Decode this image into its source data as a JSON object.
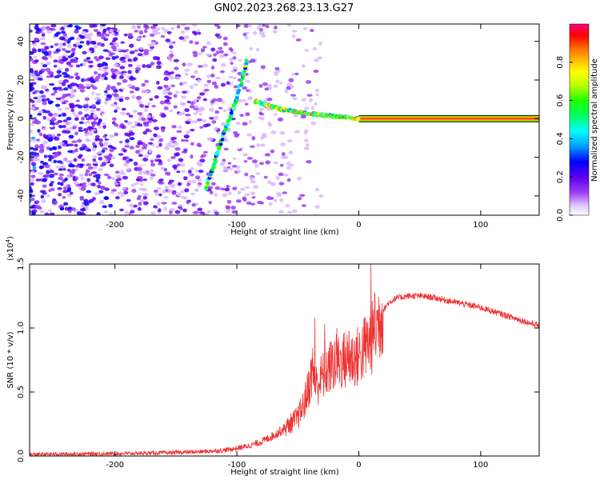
{
  "title": "GN02.2023.268.23.13.G27",
  "chart_data": [
    {
      "type": "heatmap",
      "title": "",
      "xlabel": "Height of straight line (km)",
      "ylabel": "Frequency (Hz)",
      "xlim": [
        -270,
        148
      ],
      "ylim": [
        -50,
        49
      ],
      "xticks": [
        -200,
        -100,
        0,
        100
      ],
      "yticks": [
        -40,
        -20,
        0,
        20,
        40
      ],
      "colorbar": {
        "label": "Normalized spectral amplitude",
        "range": [
          0,
          1
        ],
        "ticks": [
          "0.0",
          "0.2",
          "0.4",
          "0.6",
          "0.8"
        ],
        "colormap": [
          "#ffffff",
          "#d9b8ff",
          "#9a3cf2",
          "#5a00f0",
          "#0000ff",
          "#00a0ff",
          "#00ffff",
          "#00ff60",
          "#20ff00",
          "#c0ff00",
          "#ffff00",
          "#ffb000",
          "#ff6000",
          "#ff0000",
          "#ff0080"
        ]
      },
      "features": [
        {
          "name": "steady-carrier",
          "x_from": 0,
          "x_to": 148,
          "freq": 0,
          "amplitude": 0.95
        },
        {
          "name": "converging-trace",
          "points": [
            [
              -85,
              9
            ],
            [
              -65,
              5
            ],
            [
              -45,
              3
            ],
            [
              -25,
              1.5
            ],
            [
              0,
              0
            ]
          ],
          "amplitude": 0.6
        },
        {
          "name": "rising-diagonal",
          "points": [
            [
              -125,
              -36
            ],
            [
              -113,
              -12
            ],
            [
              -100,
              10
            ],
            [
              -92,
              30
            ]
          ],
          "amplitude": 0.45
        }
      ]
    },
    {
      "type": "line",
      "title": "",
      "xlabel": "Height of straight line (km)",
      "ylabel": "SNR (10 * v/v)",
      "scale_label": "(x10",
      "scale_exp": "4",
      "scale_close": ")",
      "xlim": [
        -270,
        148
      ],
      "ylim": [
        0,
        15000
      ],
      "xticks": [
        -200,
        -100,
        0,
        100
      ],
      "yticks": [
        0,
        5000,
        10000,
        15000
      ],
      "ytick_labels": [
        "0.0",
        "0.5",
        "1.0",
        "1.5"
      ],
      "color": "#ee3333",
      "series": [
        {
          "x": [
            -270,
            -250,
            -230,
            -210,
            -190,
            -170,
            -150,
            -130,
            -110,
            -100,
            -90,
            -80,
            -70,
            -60,
            -50,
            -45,
            -40,
            -38,
            -35,
            -30,
            -25,
            -20,
            -15,
            -10,
            -5,
            0,
            5,
            10,
            15,
            20,
            25,
            30,
            40,
            50,
            60,
            70,
            80,
            90,
            100,
            110,
            120,
            130,
            140,
            148
          ],
          "y": [
            120,
            150,
            160,
            180,
            200,
            230,
            270,
            330,
            450,
            600,
            800,
            1100,
            1600,
            2200,
            3000,
            4000,
            5800,
            6800,
            5500,
            6200,
            6800,
            7200,
            7400,
            7500,
            7600,
            7800,
            8500,
            9000,
            10200,
            11400,
            12000,
            12300,
            12500,
            12500,
            12400,
            12200,
            12000,
            11800,
            11600,
            11300,
            11000,
            10700,
            10400,
            10200
          ],
          "spikes": [
            [
              -36,
              10800
            ],
            [
              -28,
              10300
            ],
            [
              -18,
              10000
            ],
            [
              -8,
              9800
            ],
            [
              10,
              15000
            ],
            [
              13,
              12800
            ]
          ]
        }
      ]
    }
  ]
}
